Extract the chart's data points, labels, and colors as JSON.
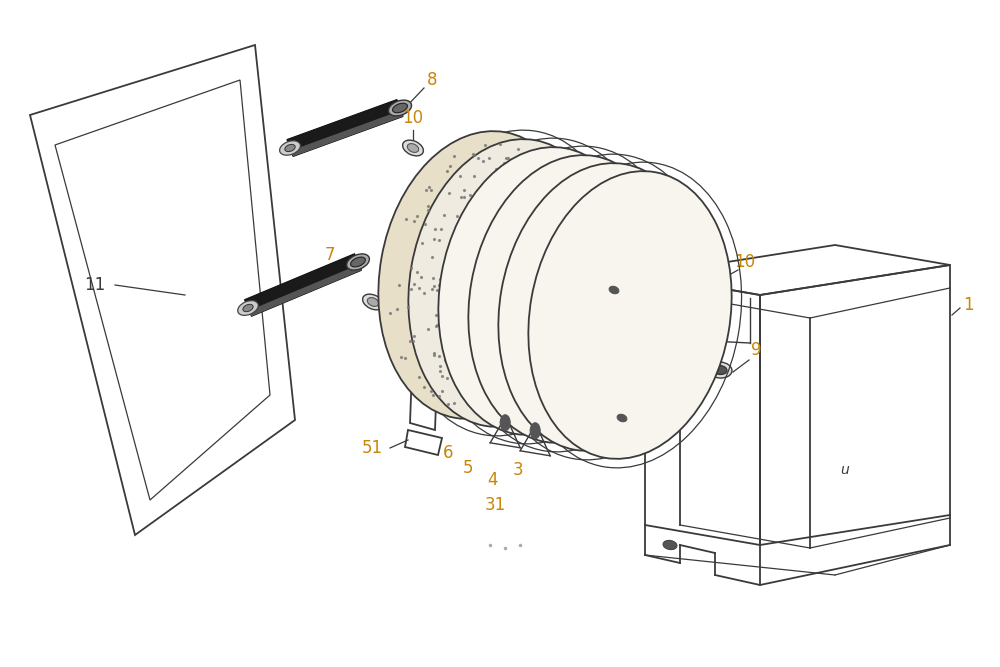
{
  "bg_color": "#ffffff",
  "line_color": "#3a3a3a",
  "label_orange": "#c8860a",
  "label_black": "#222222",
  "fig_width": 10.0,
  "fig_height": 6.67,
  "dpi": 100
}
